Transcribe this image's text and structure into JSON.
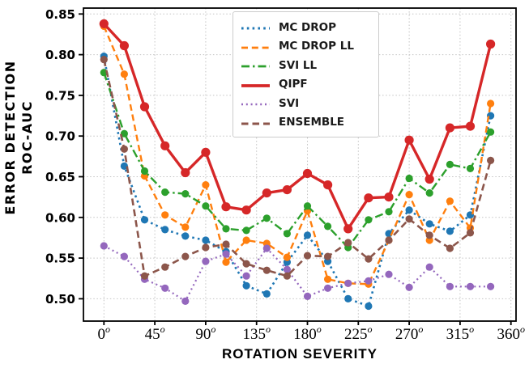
{
  "chart_data": {
    "type": "line",
    "title": "",
    "xlabel": "ROTATION  SEVERITY",
    "ylabel_line1": "ERROR  DETECTION",
    "ylabel_line2": "ROC-AUC",
    "grid": true,
    "legend_position": "top-right",
    "x_tick_suffix": "o",
    "x_ticks": [
      0,
      45,
      90,
      135,
      180,
      225,
      270,
      315,
      360
    ],
    "y_ticks": [
      "0.50",
      "0.55",
      "0.60",
      "0.65",
      "0.70",
      "0.75",
      "0.80",
      "0.85"
    ],
    "xlim": [
      -18,
      364.5
    ],
    "ylim": [
      0.486,
      0.857
    ],
    "x": [
      0,
      18,
      36,
      54,
      72,
      90,
      108,
      126,
      144,
      162,
      180,
      198,
      216,
      234,
      252,
      270,
      288,
      306,
      324,
      342
    ],
    "series": [
      {
        "name": "MC DROP",
        "color": "#1f77b4",
        "style": "dotted",
        "values": [
          0.798,
          0.663,
          0.597,
          0.585,
          0.577,
          0.572,
          0.558,
          0.516,
          0.506,
          0.545,
          0.578,
          0.546,
          0.5,
          0.491,
          0.58,
          0.609,
          0.592,
          0.583,
          0.603,
          0.725
        ]
      },
      {
        "name": "MC DROP LL",
        "color": "#ff7f0e",
        "style": "dashed",
        "values": [
          0.835,
          0.776,
          0.651,
          0.603,
          0.588,
          0.64,
          0.545,
          0.572,
          0.568,
          0.551,
          0.608,
          0.524,
          0.519,
          0.518,
          0.572,
          0.628,
          0.572,
          0.62,
          0.587,
          0.74
        ]
      },
      {
        "name": "SVI LL",
        "color": "#2ca02c",
        "style": "dashdot",
        "values": [
          0.778,
          0.703,
          0.657,
          0.631,
          0.629,
          0.614,
          0.586,
          0.584,
          0.599,
          0.58,
          0.614,
          0.589,
          0.563,
          0.597,
          0.607,
          0.648,
          0.63,
          0.665,
          0.66,
          0.705
        ]
      },
      {
        "name": "QIPF",
        "color": "#d62728",
        "style": "solid",
        "values": [
          0.838,
          0.811,
          0.736,
          0.688,
          0.655,
          0.68,
          0.613,
          0.609,
          0.63,
          0.634,
          0.654,
          0.64,
          0.586,
          0.624,
          0.625,
          0.695,
          0.647,
          0.71,
          0.712,
          0.813
        ]
      },
      {
        "name": "SVI",
        "color": "#9467bd",
        "style": "dotted-fine",
        "values": [
          0.565,
          0.552,
          0.524,
          0.513,
          0.497,
          0.546,
          0.555,
          0.528,
          0.562,
          0.536,
          0.503,
          0.513,
          0.519,
          0.522,
          0.53,
          0.514,
          0.539,
          0.515,
          0.515,
          0.515
        ]
      },
      {
        "name": "ENSEMBLE",
        "color": "#8c564b",
        "style": "dashed-short",
        "values": [
          0.794,
          0.684,
          0.528,
          0.539,
          0.552,
          0.563,
          0.567,
          0.543,
          0.535,
          0.528,
          0.553,
          0.552,
          0.569,
          0.549,
          0.572,
          0.598,
          0.578,
          0.562,
          0.581,
          0.67
        ]
      }
    ]
  }
}
